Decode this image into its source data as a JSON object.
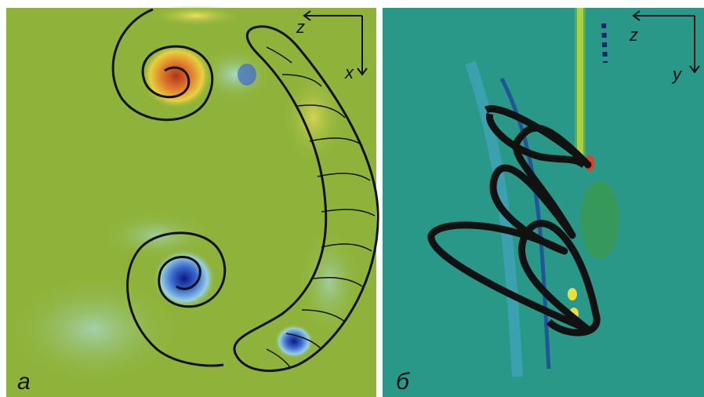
{
  "panels": [
    {
      "label": "a",
      "axis_horizontal": "z",
      "axis_vertical": "x"
    },
    {
      "label": "б",
      "axis_horizontal": "z",
      "axis_vertical": "y"
    }
  ]
}
